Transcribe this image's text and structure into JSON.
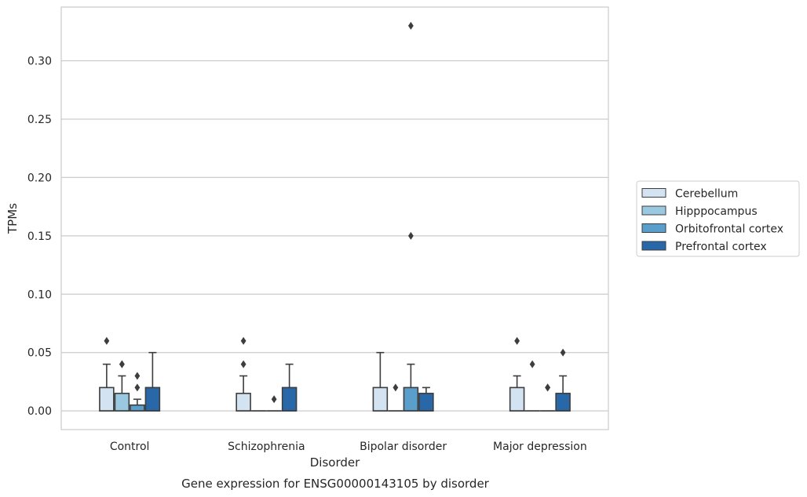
{
  "chart_data": {
    "type": "box",
    "caption": "Gene expression for ENSG00000143105 by disorder",
    "xlabel": "Disorder",
    "ylabel": "TPMs",
    "ylim": [
      -0.016,
      0.346
    ],
    "yticks": [
      0.0,
      0.05,
      0.1,
      0.15,
      0.2,
      0.25,
      0.3
    ],
    "ytick_labels": [
      "0.00",
      "0.05",
      "0.10",
      "0.15",
      "0.20",
      "0.25",
      "0.30"
    ],
    "grid": "horizontal",
    "legend_position": "right",
    "categories": [
      "Control",
      "Schizophrenia",
      "Bipolar disorder",
      "Major depression"
    ],
    "series": [
      {
        "name": "Cerebellum",
        "color": "#d3e3f2",
        "boxes": [
          {
            "q1": 0.0,
            "median": 0.0,
            "q3": 0.02,
            "whisker_low": 0.0,
            "whisker_high": 0.04,
            "outliers": [
              0.06
            ]
          },
          {
            "q1": 0.0,
            "median": 0.0,
            "q3": 0.015,
            "whisker_low": 0.0,
            "whisker_high": 0.03,
            "outliers": [
              0.04,
              0.06
            ]
          },
          {
            "q1": 0.0,
            "median": 0.0,
            "q3": 0.02,
            "whisker_low": 0.0,
            "whisker_high": 0.05,
            "outliers": []
          },
          {
            "q1": 0.0,
            "median": 0.0,
            "q3": 0.02,
            "whisker_low": 0.0,
            "whisker_high": 0.03,
            "outliers": [
              0.06
            ]
          }
        ]
      },
      {
        "name": "Hipppocampus",
        "color": "#9ac8e0",
        "boxes": [
          {
            "q1": 0.0,
            "median": 0.0,
            "q3": 0.015,
            "whisker_low": 0.0,
            "whisker_high": 0.03,
            "outliers": [
              0.04,
              0.04
            ]
          },
          {
            "q1": 0.0,
            "median": 0.0,
            "q3": 0.0,
            "whisker_low": 0.0,
            "whisker_high": 0.0,
            "outliers": []
          },
          {
            "q1": 0.0,
            "median": 0.0,
            "q3": 0.0,
            "whisker_low": 0.0,
            "whisker_high": 0.0,
            "outliers": [
              0.02
            ]
          },
          {
            "q1": 0.0,
            "median": 0.0,
            "q3": 0.0,
            "whisker_low": 0.0,
            "whisker_high": 0.0,
            "outliers": [
              0.04
            ]
          }
        ]
      },
      {
        "name": "Orbitofrontal cortex",
        "color": "#5a9fcc",
        "boxes": [
          {
            "q1": 0.0,
            "median": 0.0,
            "q3": 0.005,
            "whisker_low": 0.0,
            "whisker_high": 0.01,
            "outliers": [
              0.02,
              0.03
            ]
          },
          {
            "q1": 0.0,
            "median": 0.0,
            "q3": 0.0,
            "whisker_low": 0.0,
            "whisker_high": 0.0,
            "outliers": [
              0.01
            ]
          },
          {
            "q1": 0.0,
            "median": 0.0,
            "q3": 0.02,
            "whisker_low": 0.0,
            "whisker_high": 0.04,
            "outliers": [
              0.15,
              0.33
            ]
          },
          {
            "q1": 0.0,
            "median": 0.0,
            "q3": 0.0,
            "whisker_low": 0.0,
            "whisker_high": 0.0,
            "outliers": [
              0.02,
              0.02
            ]
          }
        ]
      },
      {
        "name": "Prefrontal cortex",
        "color": "#2868a8",
        "boxes": [
          {
            "q1": 0.0,
            "median": 0.0,
            "q3": 0.02,
            "whisker_low": 0.0,
            "whisker_high": 0.05,
            "outliers": []
          },
          {
            "q1": 0.0,
            "median": 0.0,
            "q3": 0.02,
            "whisker_low": 0.0,
            "whisker_high": 0.04,
            "outliers": []
          },
          {
            "q1": 0.0,
            "median": 0.0,
            "q3": 0.015,
            "whisker_low": 0.0,
            "whisker_high": 0.02,
            "outliers": []
          },
          {
            "q1": 0.0,
            "median": 0.0,
            "q3": 0.015,
            "whisker_low": 0.0,
            "whisker_high": 0.03,
            "outliers": [
              0.05
            ]
          }
        ]
      }
    ]
  }
}
